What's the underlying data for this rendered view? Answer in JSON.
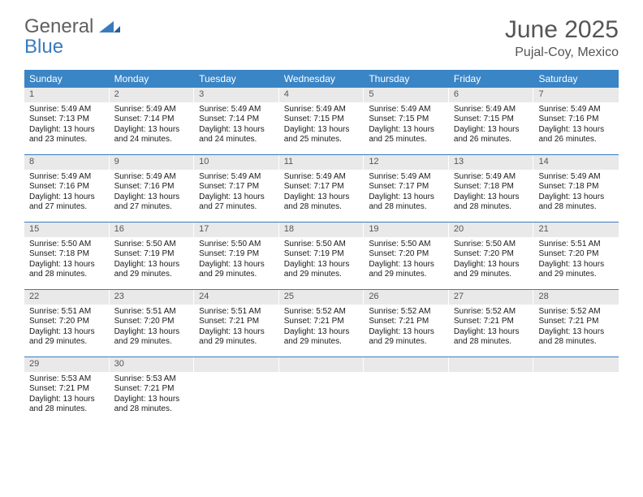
{
  "brand": {
    "line1": "General",
    "line2": "Blue"
  },
  "header": {
    "title": "June 2025",
    "location": "Pujal-Coy, Mexico"
  },
  "colors": {
    "header_bar": "#3a85c6",
    "row_border": "#3a7bbf",
    "daynum_bg": "#e9e9e9",
    "text": "#1a1a1a",
    "muted": "#555555"
  },
  "weekdays": [
    "Sunday",
    "Monday",
    "Tuesday",
    "Wednesday",
    "Thursday",
    "Friday",
    "Saturday"
  ],
  "rows": [
    [
      {
        "n": "1",
        "sr": "5:49 AM",
        "ss": "7:13 PM",
        "dl": "13 hours and 23 minutes."
      },
      {
        "n": "2",
        "sr": "5:49 AM",
        "ss": "7:14 PM",
        "dl": "13 hours and 24 minutes."
      },
      {
        "n": "3",
        "sr": "5:49 AM",
        "ss": "7:14 PM",
        "dl": "13 hours and 24 minutes."
      },
      {
        "n": "4",
        "sr": "5:49 AM",
        "ss": "7:15 PM",
        "dl": "13 hours and 25 minutes."
      },
      {
        "n": "5",
        "sr": "5:49 AM",
        "ss": "7:15 PM",
        "dl": "13 hours and 25 minutes."
      },
      {
        "n": "6",
        "sr": "5:49 AM",
        "ss": "7:15 PM",
        "dl": "13 hours and 26 minutes."
      },
      {
        "n": "7",
        "sr": "5:49 AM",
        "ss": "7:16 PM",
        "dl": "13 hours and 26 minutes."
      }
    ],
    [
      {
        "n": "8",
        "sr": "5:49 AM",
        "ss": "7:16 PM",
        "dl": "13 hours and 27 minutes."
      },
      {
        "n": "9",
        "sr": "5:49 AM",
        "ss": "7:16 PM",
        "dl": "13 hours and 27 minutes."
      },
      {
        "n": "10",
        "sr": "5:49 AM",
        "ss": "7:17 PM",
        "dl": "13 hours and 27 minutes."
      },
      {
        "n": "11",
        "sr": "5:49 AM",
        "ss": "7:17 PM",
        "dl": "13 hours and 28 minutes."
      },
      {
        "n": "12",
        "sr": "5:49 AM",
        "ss": "7:17 PM",
        "dl": "13 hours and 28 minutes."
      },
      {
        "n": "13",
        "sr": "5:49 AM",
        "ss": "7:18 PM",
        "dl": "13 hours and 28 minutes."
      },
      {
        "n": "14",
        "sr": "5:49 AM",
        "ss": "7:18 PM",
        "dl": "13 hours and 28 minutes."
      }
    ],
    [
      {
        "n": "15",
        "sr": "5:50 AM",
        "ss": "7:18 PM",
        "dl": "13 hours and 28 minutes."
      },
      {
        "n": "16",
        "sr": "5:50 AM",
        "ss": "7:19 PM",
        "dl": "13 hours and 29 minutes."
      },
      {
        "n": "17",
        "sr": "5:50 AM",
        "ss": "7:19 PM",
        "dl": "13 hours and 29 minutes."
      },
      {
        "n": "18",
        "sr": "5:50 AM",
        "ss": "7:19 PM",
        "dl": "13 hours and 29 minutes."
      },
      {
        "n": "19",
        "sr": "5:50 AM",
        "ss": "7:20 PM",
        "dl": "13 hours and 29 minutes."
      },
      {
        "n": "20",
        "sr": "5:50 AM",
        "ss": "7:20 PM",
        "dl": "13 hours and 29 minutes."
      },
      {
        "n": "21",
        "sr": "5:51 AM",
        "ss": "7:20 PM",
        "dl": "13 hours and 29 minutes."
      }
    ],
    [
      {
        "n": "22",
        "sr": "5:51 AM",
        "ss": "7:20 PM",
        "dl": "13 hours and 29 minutes."
      },
      {
        "n": "23",
        "sr": "5:51 AM",
        "ss": "7:20 PM",
        "dl": "13 hours and 29 minutes."
      },
      {
        "n": "24",
        "sr": "5:51 AM",
        "ss": "7:21 PM",
        "dl": "13 hours and 29 minutes."
      },
      {
        "n": "25",
        "sr": "5:52 AM",
        "ss": "7:21 PM",
        "dl": "13 hours and 29 minutes."
      },
      {
        "n": "26",
        "sr": "5:52 AM",
        "ss": "7:21 PM",
        "dl": "13 hours and 29 minutes."
      },
      {
        "n": "27",
        "sr": "5:52 AM",
        "ss": "7:21 PM",
        "dl": "13 hours and 28 minutes."
      },
      {
        "n": "28",
        "sr": "5:52 AM",
        "ss": "7:21 PM",
        "dl": "13 hours and 28 minutes."
      }
    ],
    [
      {
        "n": "29",
        "sr": "5:53 AM",
        "ss": "7:21 PM",
        "dl": "13 hours and 28 minutes."
      },
      {
        "n": "30",
        "sr": "5:53 AM",
        "ss": "7:21 PM",
        "dl": "13 hours and 28 minutes."
      },
      {
        "empty": true
      },
      {
        "empty": true
      },
      {
        "empty": true
      },
      {
        "empty": true
      },
      {
        "empty": true
      }
    ]
  ],
  "labels": {
    "sunrise": "Sunrise:",
    "sunset": "Sunset:",
    "daylight": "Daylight:"
  }
}
